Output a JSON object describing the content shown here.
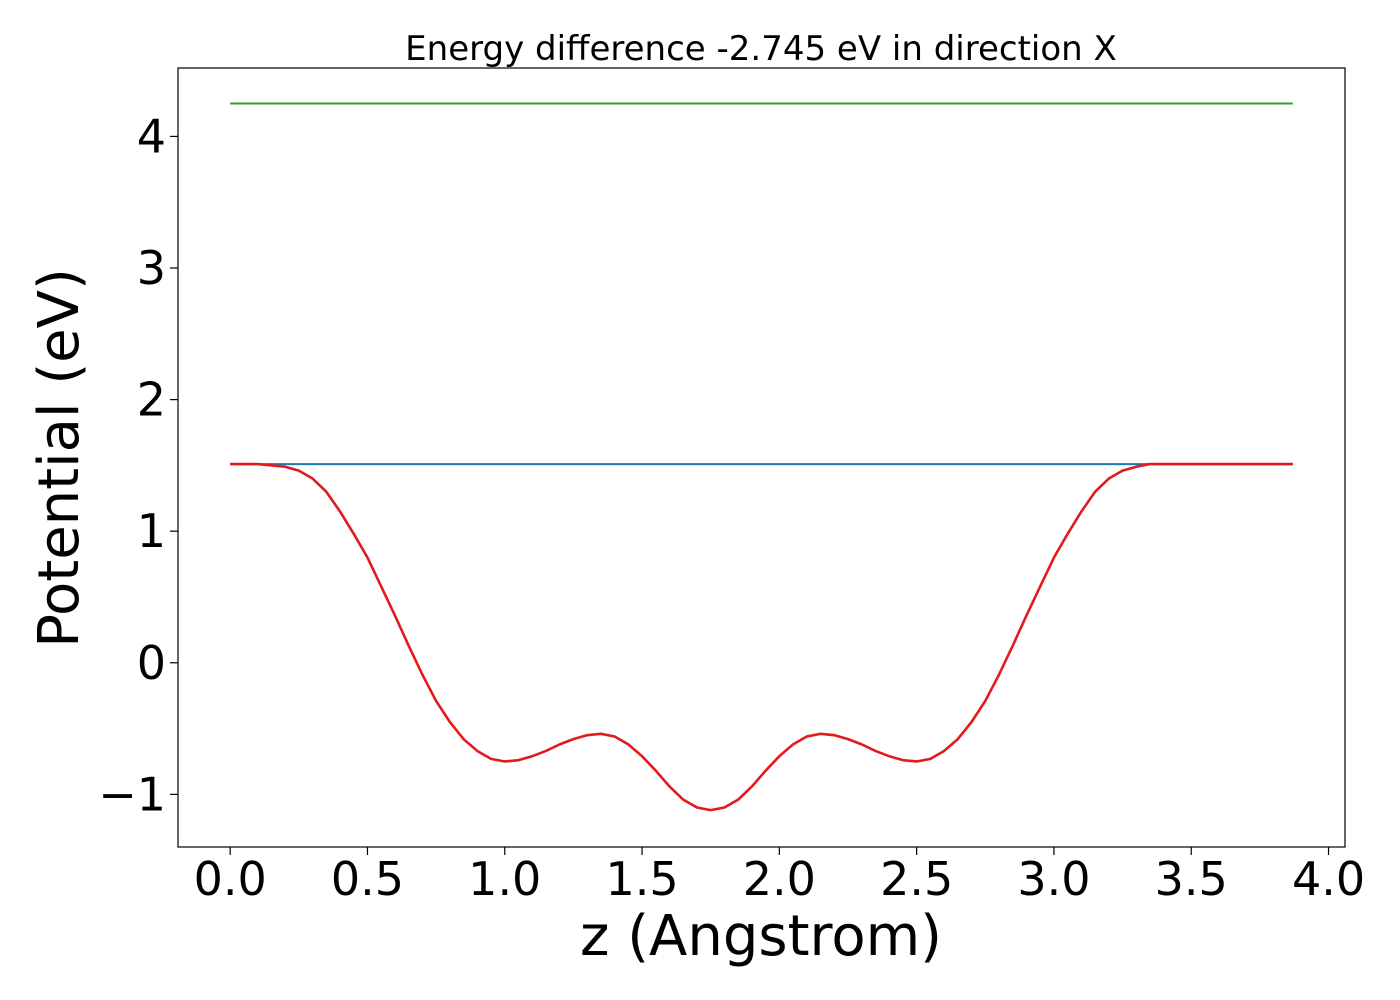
{
  "chart_data": {
    "type": "line",
    "title": "Energy difference -2.745 eV in direction X",
    "xlabel": "z (Angstrom)",
    "ylabel": "Potential (eV)",
    "xlim": [
      -0.19,
      4.06
    ],
    "ylim": [
      -1.4,
      4.52
    ],
    "xticks": [
      0.0,
      0.5,
      1.0,
      1.5,
      2.0,
      2.5,
      3.0,
      3.5,
      4.0
    ],
    "xtick_labels": [
      "0.0",
      "0.5",
      "1.0",
      "1.5",
      "2.0",
      "2.5",
      "3.0",
      "3.5",
      "4.0"
    ],
    "yticks": [
      -1,
      0,
      1,
      2,
      3,
      4
    ],
    "ytick_labels": [
      "−1",
      "0",
      "1",
      "2",
      "3",
      "4"
    ],
    "grid": false,
    "series": [
      {
        "color": "#2ca02c",
        "x": [
          0.0,
          3.87
        ],
        "y": [
          4.25,
          4.25
        ]
      },
      {
        "color": "#1f77b4",
        "x": [
          0.0,
          3.87
        ],
        "y": [
          1.51,
          1.51
        ]
      },
      {
        "color": "#e31a1c",
        "x": [
          0.0,
          0.1,
          0.2,
          0.25,
          0.3,
          0.35,
          0.4,
          0.45,
          0.5,
          0.55,
          0.6,
          0.65,
          0.7,
          0.75,
          0.8,
          0.85,
          0.9,
          0.95,
          1.0,
          1.05,
          1.1,
          1.15,
          1.2,
          1.25,
          1.3,
          1.35,
          1.4,
          1.45,
          1.5,
          1.55,
          1.6,
          1.65,
          1.7,
          1.75,
          1.8,
          1.85,
          1.9,
          1.95,
          2.0,
          2.05,
          2.1,
          2.15,
          2.2,
          2.25,
          2.3,
          2.35,
          2.4,
          2.45,
          2.5,
          2.55,
          2.6,
          2.65,
          2.7,
          2.75,
          2.8,
          2.85,
          2.9,
          2.95,
          3.0,
          3.05,
          3.1,
          3.15,
          3.2,
          3.25,
          3.3,
          3.35,
          3.4,
          3.45,
          3.5,
          3.55,
          3.6,
          3.65,
          3.7,
          3.8,
          3.87
        ],
        "y": [
          1.51,
          1.51,
          1.49,
          1.46,
          1.4,
          1.3,
          1.15,
          0.98,
          0.8,
          0.58,
          0.36,
          0.13,
          -0.09,
          -0.29,
          -0.45,
          -0.58,
          -0.67,
          -0.73,
          -0.75,
          -0.74,
          -0.71,
          -0.67,
          -0.62,
          -0.58,
          -0.55,
          -0.54,
          -0.56,
          -0.62,
          -0.71,
          -0.82,
          -0.94,
          -1.04,
          -1.1,
          -1.12,
          -1.1,
          -1.04,
          -0.94,
          -0.82,
          -0.71,
          -0.62,
          -0.56,
          -0.54,
          -0.55,
          -0.58,
          -0.62,
          -0.67,
          -0.71,
          -0.74,
          -0.75,
          -0.73,
          -0.67,
          -0.58,
          -0.45,
          -0.29,
          -0.09,
          0.13,
          0.36,
          0.58,
          0.8,
          0.98,
          1.15,
          1.3,
          1.4,
          1.46,
          1.49,
          1.51,
          1.51,
          1.51,
          1.51,
          1.51,
          1.51,
          1.51,
          1.51,
          1.51,
          1.51
        ]
      }
    ]
  }
}
